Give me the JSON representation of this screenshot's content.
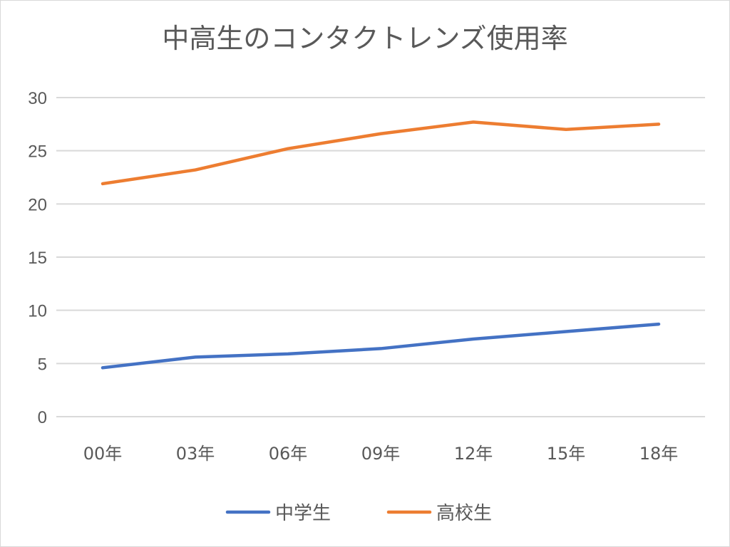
{
  "chart_data": {
    "type": "line",
    "title": "中高生のコンタクトレンズ使用率",
    "xlabel": "",
    "ylabel": "",
    "categories": [
      "00年",
      "03年",
      "06年",
      "09年",
      "12年",
      "15年",
      "18年"
    ],
    "ylim": [
      0,
      30
    ],
    "yticks": [
      0,
      5,
      10,
      15,
      20,
      25,
      30
    ],
    "grid": true,
    "legend_position": "bottom",
    "series": [
      {
        "name": "中学生",
        "color": "#4472C4",
        "values": [
          4.6,
          5.6,
          5.9,
          6.4,
          7.3,
          8.0,
          8.7
        ]
      },
      {
        "name": "高校生",
        "color": "#ED7D31",
        "values": [
          21.9,
          23.2,
          25.2,
          26.6,
          27.7,
          27.0,
          27.5
        ]
      }
    ]
  }
}
